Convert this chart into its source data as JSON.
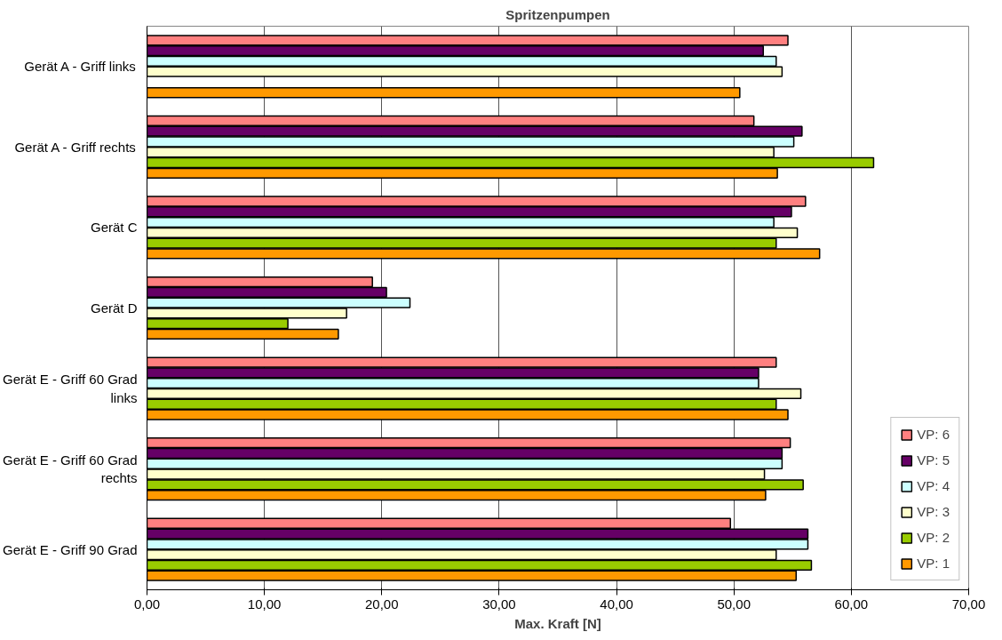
{
  "chart_data": {
    "type": "bar",
    "orientation": "horizontal",
    "title": "Spritzenpumpen",
    "xlabel": "Max. Kraft [N]",
    "categories": [
      "Gerät A - Griff links",
      "Gerät A - Griff rechts",
      "Gerät C",
      "Gerät D",
      "Gerät E - Griff 60 Grad links",
      "Gerät E - Griff 60 Grad rechts",
      "Gerät E - Griff 90 Grad"
    ],
    "series": [
      {
        "name": "VP: 6",
        "color": "#ff8080",
        "values": [
          54.6,
          51.7,
          56.1,
          19.2,
          53.6,
          54.8,
          49.7
        ]
      },
      {
        "name": "VP: 5",
        "color": "#660066",
        "values": [
          52.5,
          55.8,
          54.9,
          20.4,
          52.1,
          54.1,
          56.3
        ]
      },
      {
        "name": "VP: 4",
        "color": "#ccffff",
        "values": [
          53.6,
          55.1,
          53.4,
          22.4,
          52.1,
          54.1,
          56.3
        ]
      },
      {
        "name": "VP: 3",
        "color": "#ffffcc",
        "values": [
          54.1,
          53.4,
          55.4,
          17.0,
          55.7,
          52.6,
          53.6
        ]
      },
      {
        "name": "VP: 2",
        "color": "#99cc00",
        "values": [
          null,
          61.9,
          53.6,
          12.0,
          53.6,
          55.9,
          56.6
        ]
      },
      {
        "name": "VP: 1",
        "color": "#ff9900",
        "values": [
          50.5,
          53.7,
          57.3,
          16.3,
          54.6,
          52.7,
          55.3
        ]
      }
    ],
    "xlim": [
      0,
      70
    ],
    "xticks": [
      {
        "value": 0,
        "label": "0,00"
      },
      {
        "value": 10,
        "label": "10,00"
      },
      {
        "value": 20,
        "label": "20,00"
      },
      {
        "value": 30,
        "label": "30,00"
      },
      {
        "value": 40,
        "label": "40,00"
      },
      {
        "value": 50,
        "label": "50,00"
      },
      {
        "value": 60,
        "label": "60,00"
      },
      {
        "value": 70,
        "label": "70,00"
      }
    ],
    "grid": "x",
    "legend": "right"
  }
}
